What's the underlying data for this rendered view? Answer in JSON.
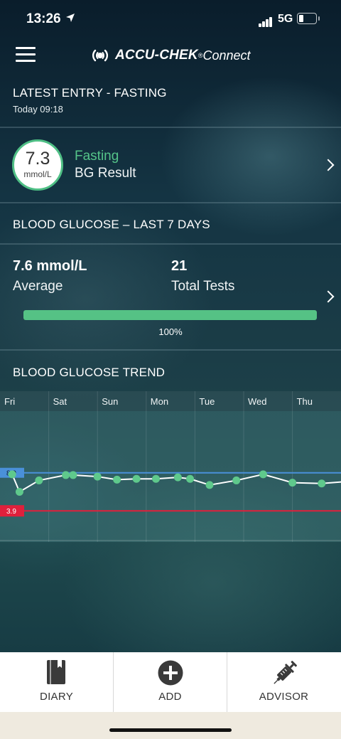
{
  "status_bar": {
    "time": "13:26",
    "network": "5G"
  },
  "header": {
    "brand_part1": "ACCU-CHEK",
    "brand_part2": "Connect",
    "brand_reg": "®"
  },
  "latest_entry": {
    "title": "LATEST ENTRY - FASTING",
    "time": "Today 09:18",
    "value": "7.3",
    "unit": "mmol/L",
    "label": "Fasting",
    "type": "BG Result",
    "accent_color": "#55c489"
  },
  "last7": {
    "title": "BLOOD GLUCOSE – LAST 7 DAYS",
    "average_value": "7.6 mmol/L",
    "average_label": "Average",
    "tests_value": "21",
    "tests_label": "Total Tests",
    "progress_percent": 100,
    "progress_label": "100%",
    "progress_color": "#55c285"
  },
  "trend": {
    "title": "BLOOD GLUCOSE TREND",
    "days": [
      "Fri",
      "Sat",
      "Sun",
      "Mon",
      "Tue",
      "Wed",
      "Thu"
    ],
    "upper_label": "8.9",
    "lower_label": "3.9",
    "upper_color": "#4a90d9",
    "lower_color": "#e0203c",
    "point_color": "#5fc98c"
  },
  "chart_data": {
    "type": "line",
    "title": "BLOOD GLUCOSE TREND",
    "xlabel": "",
    "ylabel": "",
    "x_categories": [
      "Fri",
      "Sat",
      "Sun",
      "Mon",
      "Tue",
      "Wed",
      "Thu"
    ],
    "target_range": {
      "upper": 8.9,
      "lower": 3.9
    },
    "ylim": [
      0,
      17
    ],
    "series": [
      {
        "points": [
          {
            "day": 0.25,
            "value": 8.7
          },
          {
            "day": 0.4,
            "value": 6.4
          },
          {
            "day": 0.8,
            "value": 7.9
          },
          {
            "day": 1.35,
            "value": 8.6
          },
          {
            "day": 1.5,
            "value": 8.6
          },
          {
            "day": 2.0,
            "value": 8.4
          },
          {
            "day": 2.4,
            "value": 8.0
          },
          {
            "day": 2.8,
            "value": 8.1
          },
          {
            "day": 3.2,
            "value": 8.1
          },
          {
            "day": 3.65,
            "value": 8.3
          },
          {
            "day": 3.9,
            "value": 8.1
          },
          {
            "day": 4.3,
            "value": 7.3
          },
          {
            "day": 4.85,
            "value": 7.9
          },
          {
            "day": 5.4,
            "value": 8.7
          },
          {
            "day": 6.0,
            "value": 7.6
          },
          {
            "day": 6.6,
            "value": 7.5
          },
          {
            "day": 7.2,
            "value": 7.8
          }
        ]
      }
    ]
  },
  "nav": {
    "diary": "DIARY",
    "add": "ADD",
    "advisor": "ADVISOR"
  }
}
